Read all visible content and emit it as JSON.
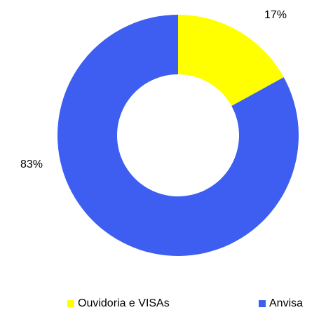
{
  "chart_data": {
    "type": "pie",
    "donut": true,
    "categories": [
      "Ouvidoria e VISAs",
      "Anvisa"
    ],
    "values": [
      17,
      83
    ],
    "value_labels": [
      "17%",
      "83%"
    ],
    "colors": [
      "#ffff00",
      "#3d5ef0"
    ]
  }
}
